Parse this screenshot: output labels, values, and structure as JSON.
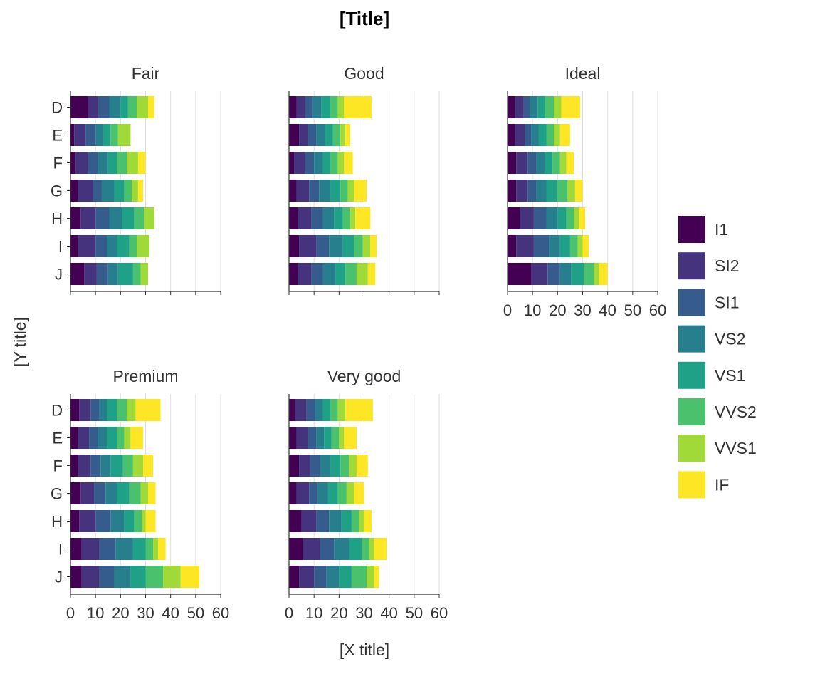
{
  "chart_data": {
    "type": "bar",
    "orientation": "horizontal",
    "stacked": true,
    "title": "[Title]",
    "xlabel": "[X title]",
    "ylabel": "[Y title]",
    "xlim": [
      0,
      60
    ],
    "x_ticks": [
      0,
      10,
      20,
      30,
      40,
      50,
      60
    ],
    "categories": [
      "D",
      "E",
      "F",
      "G",
      "H",
      "I",
      "J"
    ],
    "grid": "vertical",
    "legend_position": "right",
    "legend": [
      {
        "name": "I1",
        "color": "#440154"
      },
      {
        "name": "SI2",
        "color": "#46337E"
      },
      {
        "name": "SI1",
        "color": "#365C8D"
      },
      {
        "name": "VS2",
        "color": "#277F8E"
      },
      {
        "name": "VS1",
        "color": "#1FA187"
      },
      {
        "name": "VVS2",
        "color": "#4AC16D"
      },
      {
        "name": "VVS1",
        "color": "#A0DA39"
      },
      {
        "name": "IF",
        "color": "#FDE725"
      }
    ],
    "panels": [
      {
        "name": "Fair",
        "values": {
          "D": [
            7,
            4,
            4.5,
            4.5,
            3,
            3.5,
            4.5,
            2.5
          ],
          "E": [
            1.5,
            4.5,
            4,
            3,
            3,
            3,
            5,
            0
          ],
          "F": [
            2,
            5,
            4,
            4,
            3.5,
            4,
            4.5,
            3
          ],
          "G": [
            3,
            6,
            3.5,
            5,
            4,
            3,
            2.5,
            2
          ],
          "H": [
            4,
            6,
            5.5,
            5,
            5,
            4,
            4,
            0
          ],
          "I": [
            3,
            7,
            4.5,
            4,
            5,
            3,
            5,
            0
          ],
          "J": [
            5.5,
            5,
            4.5,
            4,
            6,
            3,
            3,
            0
          ]
        }
      },
      {
        "name": "Good",
        "values": {
          "D": [
            3,
            3.5,
            3,
            3.5,
            3.5,
            3,
            2.5,
            11
          ],
          "E": [
            4,
            3.5,
            3.5,
            3.5,
            3,
            3,
            2,
            2
          ],
          "F": [
            2,
            4.5,
            3.5,
            3.5,
            3,
            3,
            2.5,
            3.5
          ],
          "G": [
            3,
            5,
            4,
            4.5,
            4,
            3,
            2.5,
            5
          ],
          "H": [
            3.5,
            5.5,
            4.5,
            4.5,
            3.5,
            3,
            2,
            6
          ],
          "I": [
            4,
            7,
            5,
            5.5,
            4.5,
            3.5,
            3,
            2.5
          ],
          "J": [
            3.5,
            5.5,
            4.5,
            5,
            4,
            4.5,
            4.5,
            3
          ]
        }
      },
      {
        "name": "Ideal",
        "values": {
          "D": [
            3,
            3.5,
            2.5,
            3,
            3,
            3.5,
            3,
            7.5
          ],
          "E": [
            3,
            4,
            2.5,
            3,
            3,
            3,
            2.5,
            4
          ],
          "F": [
            3.5,
            4.5,
            3.5,
            3.5,
            3,
            3,
            2.5,
            3
          ],
          "G": [
            3.5,
            4.5,
            3.5,
            4,
            4.5,
            4,
            3,
            3
          ],
          "H": [
            5,
            5.5,
            5,
            4.5,
            3.5,
            3,
            2,
            2.5
          ],
          "I": [
            3.5,
            7,
            6,
            4.5,
            4,
            3,
            2,
            2.5
          ],
          "J": [
            9.5,
            6.5,
            5,
            4.5,
            5,
            4,
            2,
            3.5
          ]
        }
      },
      {
        "name": "Premium",
        "values": {
          "D": [
            3.5,
            4.5,
            3.5,
            3,
            4,
            4,
            3.5,
            10
          ],
          "E": [
            3,
            4.5,
            3.5,
            3.5,
            4,
            3,
            2.5,
            5
          ],
          "F": [
            3,
            5,
            4,
            4,
            5,
            4,
            4,
            4
          ],
          "G": [
            4,
            5.5,
            4.5,
            4.5,
            5,
            4.5,
            3,
            3
          ],
          "H": [
            3.5,
            6.5,
            6,
            5.5,
            4,
            3,
            1.5,
            4
          ],
          "I": [
            4.5,
            7,
            6.5,
            7,
            5,
            3,
            2,
            3
          ],
          "J": [
            4.5,
            7,
            6,
            6.5,
            6,
            7,
            7,
            7.5
          ]
        }
      },
      {
        "name": "Very good",
        "values": {
          "D": [
            2.5,
            4.5,
            3.5,
            3,
            3,
            3,
            3,
            11
          ],
          "E": [
            3,
            4.5,
            3.5,
            3,
            3,
            3,
            2,
            5
          ],
          "F": [
            4,
            4.5,
            4,
            4,
            4,
            3.5,
            3,
            4.5
          ],
          "G": [
            3,
            5,
            3.5,
            4,
            4,
            3.5,
            3,
            4
          ],
          "H": [
            5,
            6,
            5,
            5,
            4,
            3,
            2,
            3
          ],
          "I": [
            5.5,
            7,
            5.5,
            6,
            5,
            3,
            2,
            5
          ],
          "J": [
            4,
            6,
            5,
            5,
            5,
            6,
            3,
            2
          ]
        }
      }
    ]
  }
}
